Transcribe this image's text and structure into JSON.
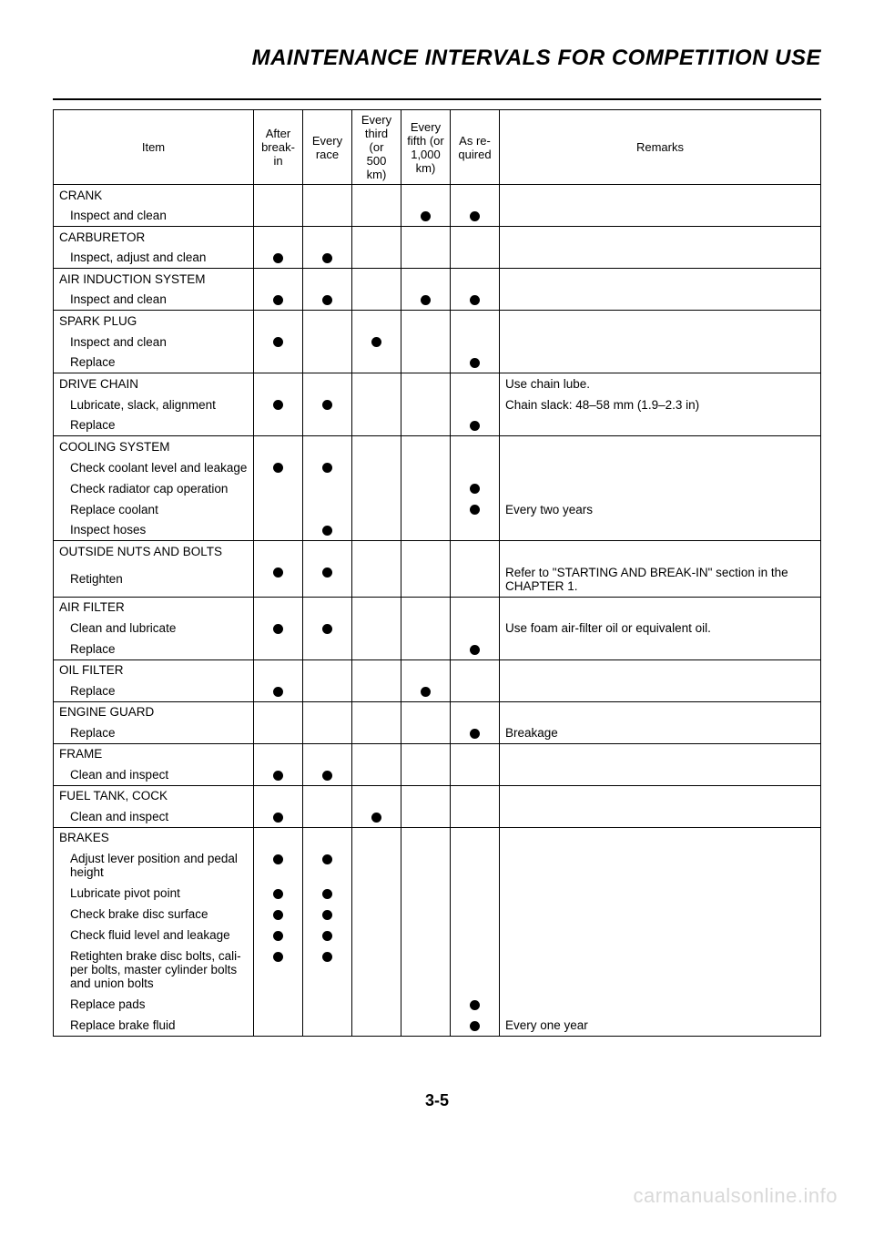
{
  "title": "MAINTENANCE INTERVALS FOR COMPETITION USE",
  "page_number": "3-5",
  "watermark": "carmanualsonline.info",
  "columns": {
    "item": "Item",
    "c1": "After break-in",
    "c2": "Every race",
    "c3": "Every third (or 500 km)",
    "c4": "Every fifth (or 1,000 km)",
    "c5": "As re-quired",
    "remarks": "Remarks"
  },
  "rows": [
    {
      "label": "CRANK",
      "type": "head"
    },
    {
      "label": "Inspect and clean",
      "type": "sub",
      "dots": [
        0,
        0,
        0,
        1,
        1
      ]
    },
    {
      "label": "CARBURETOR",
      "type": "head"
    },
    {
      "label": "Inspect, adjust and clean",
      "type": "sub",
      "dots": [
        1,
        1,
        0,
        0,
        0
      ]
    },
    {
      "label": "AIR INDUCTION SYSTEM",
      "type": "head"
    },
    {
      "label": "Inspect and clean",
      "type": "sub",
      "dots": [
        1,
        1,
        0,
        1,
        1
      ]
    },
    {
      "label": "SPARK PLUG",
      "type": "head"
    },
    {
      "label": "Inspect and clean",
      "type": "sub",
      "dots": [
        1,
        0,
        1,
        0,
        0
      ]
    },
    {
      "label": "Replace",
      "type": "sub",
      "dots": [
        0,
        0,
        0,
        0,
        1
      ]
    },
    {
      "label": "DRIVE CHAIN",
      "type": "head",
      "remarks": "Use chain lube."
    },
    {
      "label": "Lubricate, slack, alignment",
      "type": "sub",
      "dots": [
        1,
        1,
        0,
        0,
        0
      ],
      "remarks": "Chain slack: 48–58 mm (1.9–2.3 in)"
    },
    {
      "label": "Replace",
      "type": "sub",
      "dots": [
        0,
        0,
        0,
        0,
        1
      ]
    },
    {
      "label": "COOLING SYSTEM",
      "type": "head"
    },
    {
      "label": "Check coolant level and leakage",
      "type": "sub",
      "dots": [
        1,
        1,
        0,
        0,
        0
      ]
    },
    {
      "label": "Check radiator cap operation",
      "type": "sub",
      "dots": [
        0,
        0,
        0,
        0,
        1
      ]
    },
    {
      "label": "Replace coolant",
      "type": "sub",
      "dots": [
        0,
        0,
        0,
        0,
        1
      ],
      "remarks": "Every two years"
    },
    {
      "label": "Inspect hoses",
      "type": "sub",
      "dots": [
        0,
        1,
        0,
        0,
        0
      ]
    },
    {
      "label": "OUTSIDE NUTS AND BOLTS",
      "type": "head"
    },
    {
      "label": "Retighten",
      "type": "sub",
      "dots": [
        1,
        1,
        0,
        0,
        0
      ],
      "remarks": "Refer to \"STARTING AND BREAK-IN\" section in the CHAPTER 1.",
      "tall": true
    },
    {
      "label": "AIR FILTER",
      "type": "head"
    },
    {
      "label": "Clean and lubricate",
      "type": "sub",
      "dots": [
        1,
        1,
        0,
        0,
        0
      ],
      "remarks": "Use foam air-filter oil or equivalent oil."
    },
    {
      "label": "Replace",
      "type": "sub",
      "dots": [
        0,
        0,
        0,
        0,
        1
      ]
    },
    {
      "label": "OIL FILTER",
      "type": "head"
    },
    {
      "label": "Replace",
      "type": "sub",
      "dots": [
        1,
        0,
        0,
        1,
        0
      ]
    },
    {
      "label": "ENGINE GUARD",
      "type": "head"
    },
    {
      "label": "Replace",
      "type": "sub",
      "dots": [
        0,
        0,
        0,
        0,
        1
      ],
      "remarks": "Breakage"
    },
    {
      "label": "FRAME",
      "type": "head"
    },
    {
      "label": "Clean and inspect",
      "type": "sub",
      "dots": [
        1,
        1,
        0,
        0,
        0
      ]
    },
    {
      "label": "FUEL TANK, COCK",
      "type": "head"
    },
    {
      "label": "Clean and inspect",
      "type": "sub",
      "dots": [
        1,
        0,
        1,
        0,
        0
      ]
    },
    {
      "label": "BRAKES",
      "type": "head"
    },
    {
      "label": "Adjust lever position and pedal height",
      "type": "sub",
      "dots": [
        1,
        1,
        0,
        0,
        0
      ],
      "tall": true
    },
    {
      "label": "Lubricate pivot point",
      "type": "sub",
      "dots": [
        1,
        1,
        0,
        0,
        0
      ]
    },
    {
      "label": "Check brake disc surface",
      "type": "sub",
      "dots": [
        1,
        1,
        0,
        0,
        0
      ]
    },
    {
      "label": "Check fluid level and leakage",
      "type": "sub",
      "dots": [
        1,
        1,
        0,
        0,
        0
      ]
    },
    {
      "label": "Retighten brake disc bolts, cali-per bolts, master cylinder bolts and union bolts",
      "type": "sub",
      "dots": [
        1,
        1,
        0,
        0,
        0
      ],
      "tall": true
    },
    {
      "label": "Replace pads",
      "type": "sub",
      "dots": [
        0,
        0,
        0,
        0,
        1
      ]
    },
    {
      "label": "Replace brake fluid",
      "type": "sub",
      "dots": [
        0,
        0,
        0,
        0,
        1
      ],
      "remarks": "Every one year"
    }
  ]
}
